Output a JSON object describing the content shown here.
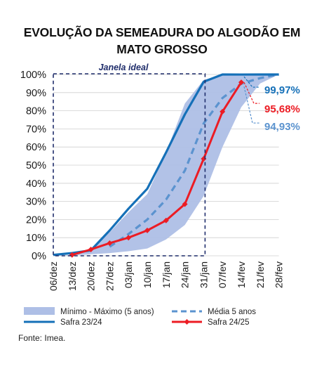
{
  "title_line1": "EVOLUÇÃO DA SEMEADURA DO ALGODÃO EM",
  "title_line2": "MATO GROSSO",
  "source": "Fonte: Imea.",
  "colors": {
    "band": "#aebfe6",
    "media": "#5b93cf",
    "safra2324": "#1570b8",
    "safra2425": "#ec1c24",
    "janela": "#1f2d6b",
    "grid": "#cfcfcf",
    "label_media": "#5b93cf",
    "label_2324": "#1570b8",
    "label_2425": "#ec1c24"
  },
  "chart_data": {
    "type": "line",
    "categories": [
      "06/dez",
      "13/dez",
      "20/dez",
      "27/dez",
      "03/jan",
      "10/jan",
      "17/jan",
      "24/jan",
      "31/jan",
      "07/fev",
      "14/fev",
      "21/fev",
      "28/fev"
    ],
    "y_ticks": [
      "0%",
      "10%",
      "20%",
      "30%",
      "40%",
      "50%",
      "60%",
      "70%",
      "80%",
      "90%",
      "100%"
    ],
    "ylim": [
      0,
      100
    ],
    "janela_ideal": {
      "label": "Janela ideal",
      "from": "06/dez",
      "to": "31/jan"
    },
    "band": {
      "name": "Mínimo - Máximo (5 anos)",
      "min": [
        0,
        0.2,
        0.8,
        1.5,
        2.5,
        4,
        9,
        17,
        33,
        60,
        82,
        95,
        100
      ],
      "max": [
        0,
        0.5,
        3,
        13,
        24,
        34,
        57,
        84,
        97,
        100,
        100,
        100,
        100
      ]
    },
    "series": [
      {
        "name": "Média 5 anos",
        "values": [
          null,
          null,
          null,
          5,
          12,
          20,
          31,
          47,
          73,
          87,
          94.93,
          98,
          100
        ]
      },
      {
        "name": "Safra 23/24",
        "values": [
          0.5,
          1.5,
          3,
          14,
          26,
          37,
          57,
          78,
          96,
          100,
          99.97,
          100,
          100
        ]
      },
      {
        "name": "Safra 24/25",
        "values": [
          null,
          0.5,
          3.5,
          7,
          10,
          14,
          19.5,
          28.5,
          53.5,
          79.5,
          95.68,
          null,
          null
        ]
      }
    ],
    "annotations": [
      "99,97%",
      "95,68%",
      "94,93%"
    ],
    "legend": [
      "Mínimo - Máximo (5 anos)",
      "Média 5 anos",
      "Safra 23/24",
      "Safra 24/25"
    ]
  }
}
